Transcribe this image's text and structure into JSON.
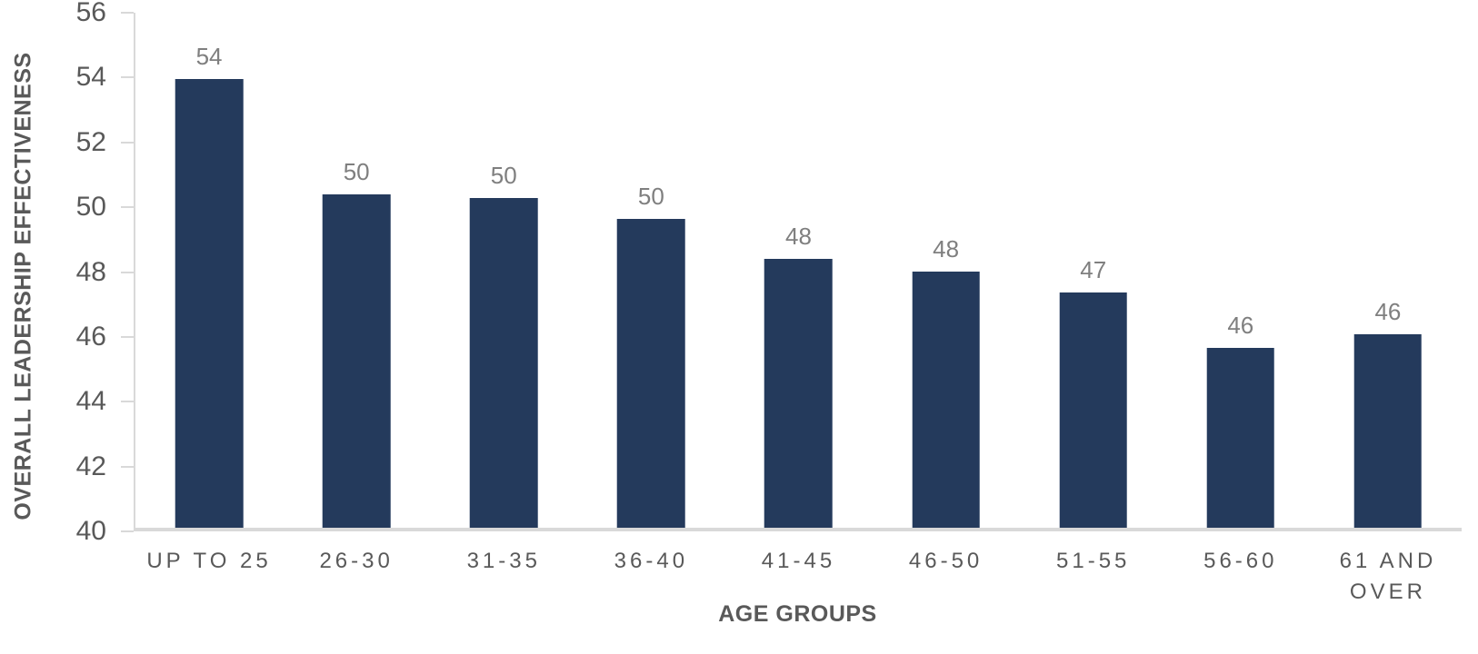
{
  "chart_data": {
    "type": "bar",
    "title": "",
    "xlabel": "AGE GROUPS",
    "ylabel": "OVERALL LEADERSHIP EFFECTIVENESS",
    "categories": [
      "UP TO 25",
      "26-30",
      "31-35",
      "36-40",
      "41-45",
      "46-50",
      "51-55",
      "56-60",
      "61 AND OVER"
    ],
    "values": [
      53.95,
      50.35,
      50.25,
      49.6,
      48.35,
      47.95,
      47.3,
      45.6,
      46.0
    ],
    "bar_labels": [
      "54",
      "50",
      "50",
      "50",
      "48",
      "48",
      "47",
      "46",
      "46"
    ],
    "ylim": [
      40,
      56
    ],
    "yticks": [
      40,
      42,
      44,
      46,
      48,
      50,
      52,
      54,
      56
    ],
    "grid": false,
    "legend": "none",
    "layout": {
      "bar_gap_note": "single series, plain white plot, left and bottom axis lines only"
    },
    "colors": {
      "bar": "#243A5C",
      "bar_label": "#7F7F7F",
      "tick_label": "#595959",
      "axis_title": "#595959",
      "axis_line": "#D9D9D9"
    }
  }
}
